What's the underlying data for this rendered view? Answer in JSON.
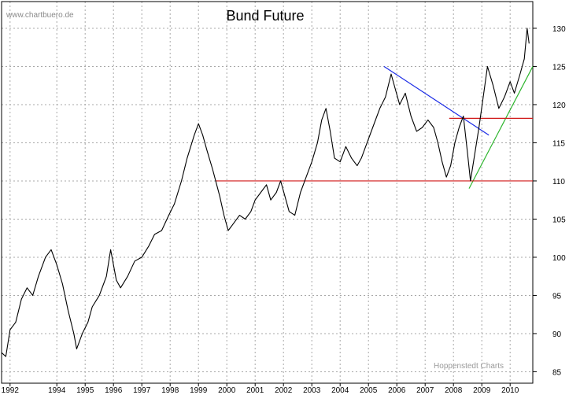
{
  "chart_data": {
    "type": "line",
    "title": "Bund Future",
    "site_label": "www.chartbuero.de",
    "credit": "Hoppenstedt Charts",
    "xlabel": "",
    "ylabel": "",
    "xlim": [
      1992.0,
      2010.75
    ],
    "ylim": [
      83.5,
      133.5
    ],
    "grid": true,
    "x_ticks": [
      {
        "label": "1992",
        "value": 1992.3
      },
      {
        "label": "1994",
        "value": 1993.95
      },
      {
        "label": "1995",
        "value": 1994.95
      },
      {
        "label": "1996",
        "value": 1995.95
      },
      {
        "label": "1997",
        "value": 1996.95
      },
      {
        "label": "1998",
        "value": 1997.95
      },
      {
        "label": "1999",
        "value": 1998.95
      },
      {
        "label": "2000",
        "value": 1999.95
      },
      {
        "label": "2001",
        "value": 2000.95
      },
      {
        "label": "2002",
        "value": 2001.95
      },
      {
        "label": "2003",
        "value": 2002.95
      },
      {
        "label": "2004",
        "value": 2003.95
      },
      {
        "label": "2005",
        "value": 2004.95
      },
      {
        "label": "2006",
        "value": 2005.95
      },
      {
        "label": "2007",
        "value": 2006.95
      },
      {
        "label": "2008",
        "value": 2007.95
      },
      {
        "label": "2009",
        "value": 2008.95
      },
      {
        "label": "2010",
        "value": 2009.95
      }
    ],
    "y_ticks": [
      85,
      90,
      95,
      100,
      105,
      110,
      115,
      120,
      125,
      130
    ],
    "series": [
      {
        "color": "#000000",
        "points": [
          [
            1992.0,
            87.5
          ],
          [
            1992.15,
            87.0
          ],
          [
            1992.3,
            90.5
          ],
          [
            1992.5,
            91.5
          ],
          [
            1992.7,
            94.5
          ],
          [
            1992.9,
            96.0
          ],
          [
            1993.1,
            95.0
          ],
          [
            1993.3,
            97.5
          ],
          [
            1993.55,
            100.0
          ],
          [
            1993.75,
            101.0
          ],
          [
            1993.95,
            99.0
          ],
          [
            1994.15,
            96.5
          ],
          [
            1994.35,
            93.0
          ],
          [
            1994.55,
            90.0
          ],
          [
            1994.65,
            88.0
          ],
          [
            1994.85,
            90.0
          ],
          [
            1995.05,
            91.5
          ],
          [
            1995.2,
            93.5
          ],
          [
            1995.45,
            95.0
          ],
          [
            1995.7,
            97.5
          ],
          [
            1995.85,
            101.0
          ],
          [
            1996.05,
            97.0
          ],
          [
            1996.2,
            96.0
          ],
          [
            1996.45,
            97.5
          ],
          [
            1996.7,
            99.5
          ],
          [
            1996.95,
            100.0
          ],
          [
            1997.2,
            101.5
          ],
          [
            1997.4,
            103.0
          ],
          [
            1997.65,
            103.5
          ],
          [
            1997.9,
            105.5
          ],
          [
            1998.1,
            107.0
          ],
          [
            1998.35,
            110.0
          ],
          [
            1998.55,
            113.0
          ],
          [
            1998.8,
            116.0
          ],
          [
            1998.95,
            117.5
          ],
          [
            1999.1,
            116.0
          ],
          [
            1999.25,
            114.0
          ],
          [
            1999.45,
            111.5
          ],
          [
            1999.7,
            108.0
          ],
          [
            1999.85,
            105.5
          ],
          [
            2000.0,
            103.5
          ],
          [
            2000.2,
            104.5
          ],
          [
            2000.4,
            105.5
          ],
          [
            2000.6,
            105.0
          ],
          [
            2000.8,
            106.0
          ],
          [
            2000.95,
            107.5
          ],
          [
            2001.15,
            108.5
          ],
          [
            2001.35,
            109.5
          ],
          [
            2001.5,
            107.5
          ],
          [
            2001.7,
            108.5
          ],
          [
            2001.85,
            110.0
          ],
          [
            2002.0,
            108.0
          ],
          [
            2002.15,
            106.0
          ],
          [
            2002.35,
            105.5
          ],
          [
            2002.55,
            108.5
          ],
          [
            2002.75,
            110.5
          ],
          [
            2002.95,
            112.5
          ],
          [
            2003.15,
            115.0
          ],
          [
            2003.3,
            118.0
          ],
          [
            2003.45,
            119.5
          ],
          [
            2003.6,
            116.5
          ],
          [
            2003.75,
            113.0
          ],
          [
            2003.95,
            112.5
          ],
          [
            2004.15,
            114.5
          ],
          [
            2004.35,
            113.0
          ],
          [
            2004.55,
            112.0
          ],
          [
            2004.7,
            113.0
          ],
          [
            2004.9,
            115.0
          ],
          [
            2005.1,
            117.0
          ],
          [
            2005.35,
            119.5
          ],
          [
            2005.55,
            121.0
          ],
          [
            2005.75,
            124.0
          ],
          [
            2005.9,
            122.0
          ],
          [
            2006.05,
            120.0
          ],
          [
            2006.25,
            121.5
          ],
          [
            2006.45,
            118.5
          ],
          [
            2006.65,
            116.5
          ],
          [
            2006.85,
            117.0
          ],
          [
            2007.05,
            118.0
          ],
          [
            2007.25,
            117.0
          ],
          [
            2007.4,
            115.0
          ],
          [
            2007.55,
            112.5
          ],
          [
            2007.7,
            110.5
          ],
          [
            2007.85,
            112.0
          ],
          [
            2008.0,
            115.0
          ],
          [
            2008.15,
            117.0
          ],
          [
            2008.3,
            118.5
          ],
          [
            2008.45,
            113.5
          ],
          [
            2008.55,
            110.0
          ],
          [
            2008.7,
            113.5
          ],
          [
            2008.85,
            117.0
          ],
          [
            2009.0,
            121.0
          ],
          [
            2009.15,
            125.0
          ],
          [
            2009.35,
            122.5
          ],
          [
            2009.55,
            119.5
          ],
          [
            2009.75,
            121.0
          ],
          [
            2009.95,
            123.0
          ],
          [
            2010.1,
            121.5
          ],
          [
            2010.3,
            124.0
          ],
          [
            2010.45,
            126.0
          ],
          [
            2010.55,
            130.0
          ],
          [
            2010.62,
            128.0
          ]
        ]
      }
    ],
    "trend_lines": [
      {
        "color": "#1a2be6",
        "from": [
          2005.5,
          125.0
        ],
        "to": [
          2009.2,
          116.0
        ]
      },
      {
        "color": "#2db52d",
        "from": [
          2008.5,
          109.0
        ],
        "to": [
          2010.75,
          125.0
        ]
      },
      {
        "color": "#d01818",
        "from": [
          1999.55,
          110.0
        ],
        "to": [
          2010.75,
          110.0
        ]
      },
      {
        "color": "#d01818",
        "from": [
          2007.8,
          118.2
        ],
        "to": [
          2010.75,
          118.2
        ]
      }
    ]
  }
}
